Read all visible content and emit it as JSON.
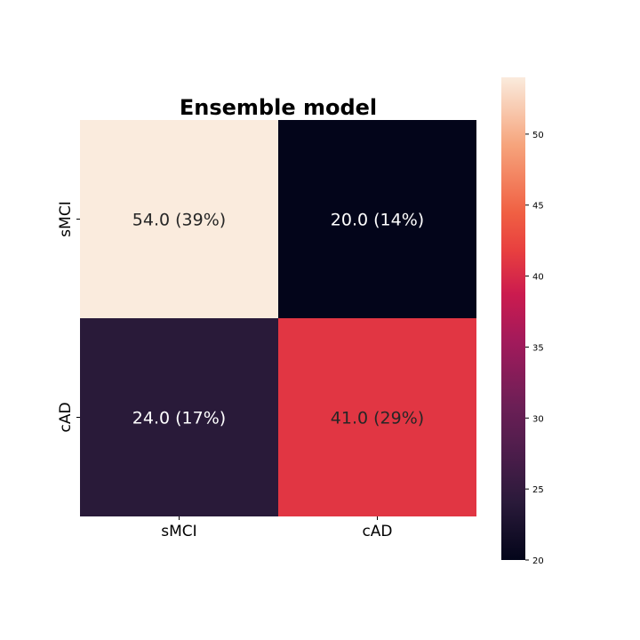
{
  "chart_data": {
    "type": "heatmap",
    "title": "Ensemble model",
    "row_labels": [
      "sMCI",
      "cAD"
    ],
    "col_labels": [
      "sMCI",
      "cAD"
    ],
    "values": [
      [
        54,
        20
      ],
      [
        24,
        41
      ]
    ],
    "cell_labels": [
      [
        "54.0 (39%)",
        "20.0 (14%)"
      ],
      [
        "24.0 (17%)",
        "41.0 (29%)"
      ]
    ],
    "colorbar": {
      "range": [
        20,
        54
      ],
      "ticks": [
        20,
        25,
        30,
        35,
        40,
        45,
        50
      ],
      "tick_labels": [
        "20",
        "25",
        "30",
        "35",
        "40",
        "45",
        "50"
      ]
    },
    "colors": {
      "low": "#03051a",
      "high": "#faebdd",
      "label_on_light": "#262626",
      "label_on_dark": "#ffffff"
    },
    "colormap_stops": [
      [
        "#03051a",
        0.0
      ],
      [
        "#2a1a3a",
        0.12
      ],
      [
        "#4c1d4b",
        0.22
      ],
      [
        "#6c1f56",
        0.32
      ],
      [
        "#a11a5b",
        0.45
      ],
      [
        "#cb1b4f",
        0.55
      ],
      [
        "#e83f3f",
        0.64
      ],
      [
        "#f06043",
        0.72
      ],
      [
        "#f6a47c",
        0.86
      ],
      [
        "#faebdd",
        1.0
      ]
    ],
    "xlabel": "",
    "ylabel": ""
  }
}
